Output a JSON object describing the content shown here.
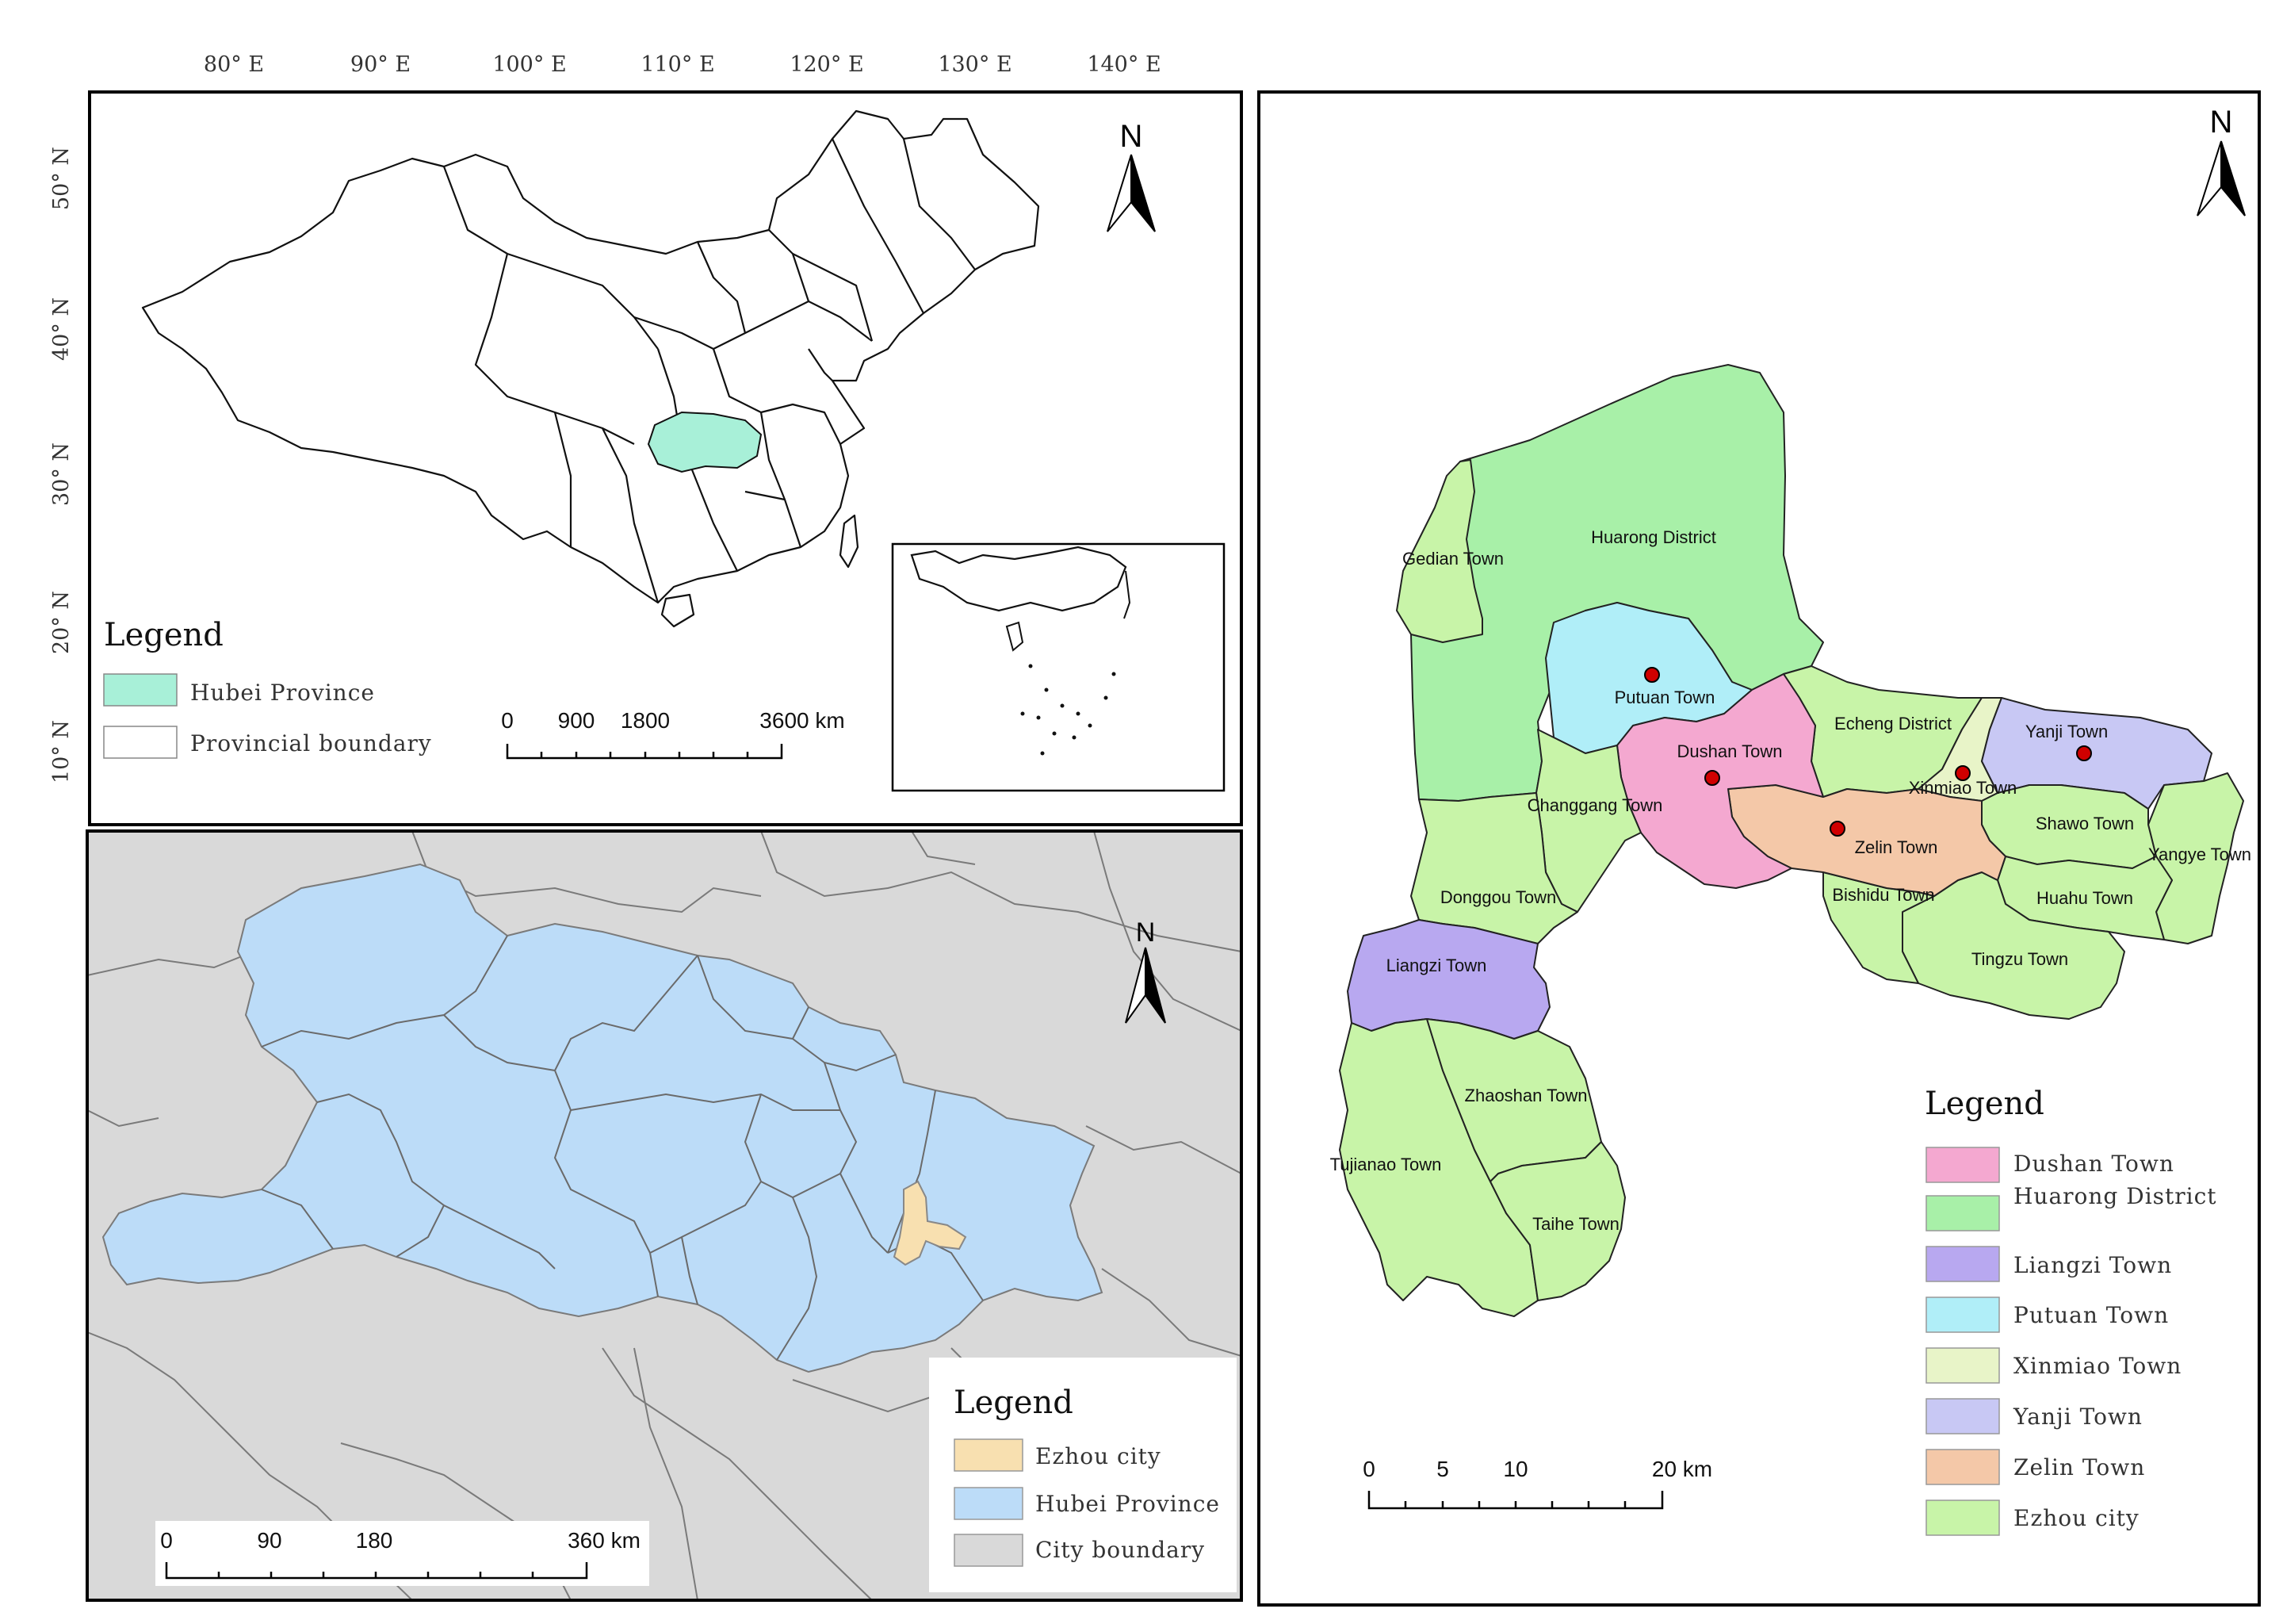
{
  "china_map": {
    "lon_ticks": [
      "80° E",
      "90° E",
      "100° E",
      "110° E",
      "120° E",
      "130° E",
      "140° E"
    ],
    "lat_ticks": [
      "50° N",
      "40° N",
      "30° N",
      "20° N",
      "10° N"
    ],
    "north": "N",
    "legend": {
      "title": "Legend",
      "items": [
        {
          "label": "Hubei Province",
          "color": "#a8f0d8"
        },
        {
          "label": "Provincial boundary",
          "color": "#ffffff"
        }
      ]
    },
    "scale": {
      "labels": [
        "0",
        "900",
        "1800",
        "3600 km"
      ]
    }
  },
  "hubei_map": {
    "north": "N",
    "legend": {
      "title": "Legend",
      "items": [
        {
          "label": "Ezhou city",
          "color": "#f8e0b0"
        },
        {
          "label": "Hubei Province",
          "color": "#bcdcf8"
        },
        {
          "label": "City boundary",
          "color": "#d9d9d9"
        }
      ]
    },
    "scale": {
      "labels": [
        "0",
        "90",
        "180",
        "360 km"
      ]
    }
  },
  "ezhou_map": {
    "north": "N",
    "labels": {
      "huarong": "Huarong District",
      "gedian": "Gedian Town",
      "putuan": "Putuan Town",
      "echeng": "Echeng District",
      "yanji": "Yanji Town",
      "dushan": "Dushan Town",
      "xinmiao": "Xinmiao Town",
      "changgang": "Changgang Town",
      "zelin": "Zelin Town",
      "shawo": "Shawo Town",
      "yangye": "Yangye Town",
      "donggou": "Donggou Town",
      "bishidu": "Bishidu Town",
      "huahu": "Huahu Town",
      "tingzu": "Tingzu Town",
      "liangzi": "Liangzi Town",
      "zhaoshan": "Zhaoshan Town",
      "tujianao": "Tujianao Town",
      "taihe": "Taihe Town"
    },
    "legend": {
      "title": "Legend",
      "items": [
        {
          "label": "Dushan Town",
          "color": "#f4a8d0"
        },
        {
          "label": "Huarong District",
          "color": "#a8f0a8"
        },
        {
          "label": "Liangzi Town",
          "color": "#b8a8f0"
        },
        {
          "label": "Putuan Town",
          "color": "#b0eef8"
        },
        {
          "label": "Xinmiao Town",
          "color": "#e8f4c8"
        },
        {
          "label": "Yanji Town",
          "color": "#c8c8f4"
        },
        {
          "label": "Zelin Town",
          "color": "#f4c8a8"
        },
        {
          "label": "Ezhou city",
          "color": "#c8f4a8"
        }
      ]
    },
    "scale": {
      "labels": [
        "0",
        "5",
        "10",
        "20 km"
      ]
    }
  }
}
